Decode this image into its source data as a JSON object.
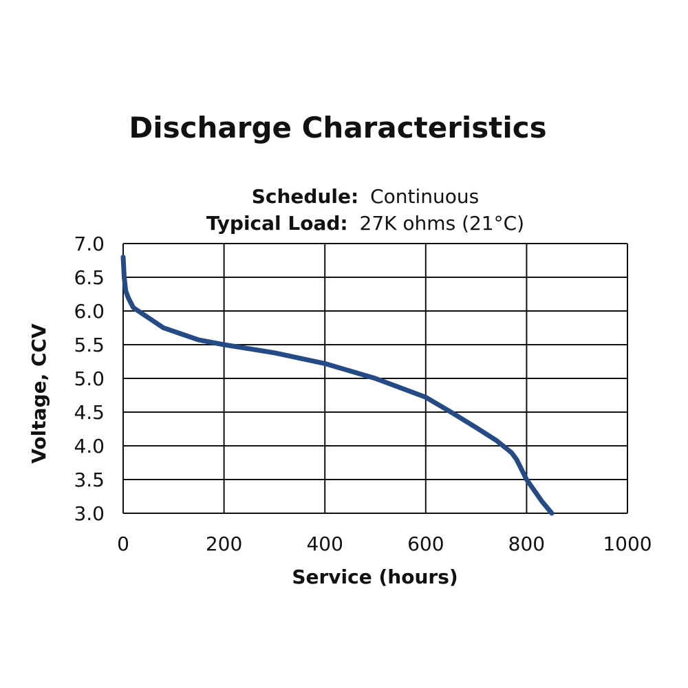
{
  "chart_data": {
    "type": "line",
    "title": "Discharge Characteristics",
    "subtitle": {
      "schedule_label": "Schedule:",
      "schedule_value": "Continuous",
      "load_label": "Typical Load:",
      "load_value": "27K ohms (21°C)"
    },
    "xlabel": "Service (hours)",
    "ylabel": "Voltage, CCV",
    "xlim": [
      0,
      1000
    ],
    "ylim": [
      3.0,
      7.0
    ],
    "xticks": [
      "0",
      "200",
      "400",
      "600",
      "800",
      "1000"
    ],
    "yticks": [
      "7.0",
      "6.5",
      "6.0",
      "5.5",
      "5.0",
      "4.5",
      "4.0",
      "3.5",
      "3.0"
    ],
    "grid": true,
    "line_color": "#244b85",
    "series": [
      {
        "x": [
          0,
          2,
          5,
          10,
          20,
          40,
          80,
          150,
          200,
          300,
          400,
          500,
          600,
          650,
          700,
          740,
          770,
          780,
          800,
          830,
          850
        ],
        "y": [
          6.8,
          6.5,
          6.3,
          6.2,
          6.05,
          5.95,
          5.75,
          5.57,
          5.5,
          5.38,
          5.22,
          5.0,
          4.72,
          4.5,
          4.27,
          4.08,
          3.9,
          3.8,
          3.5,
          3.18,
          3.0
        ]
      }
    ]
  }
}
